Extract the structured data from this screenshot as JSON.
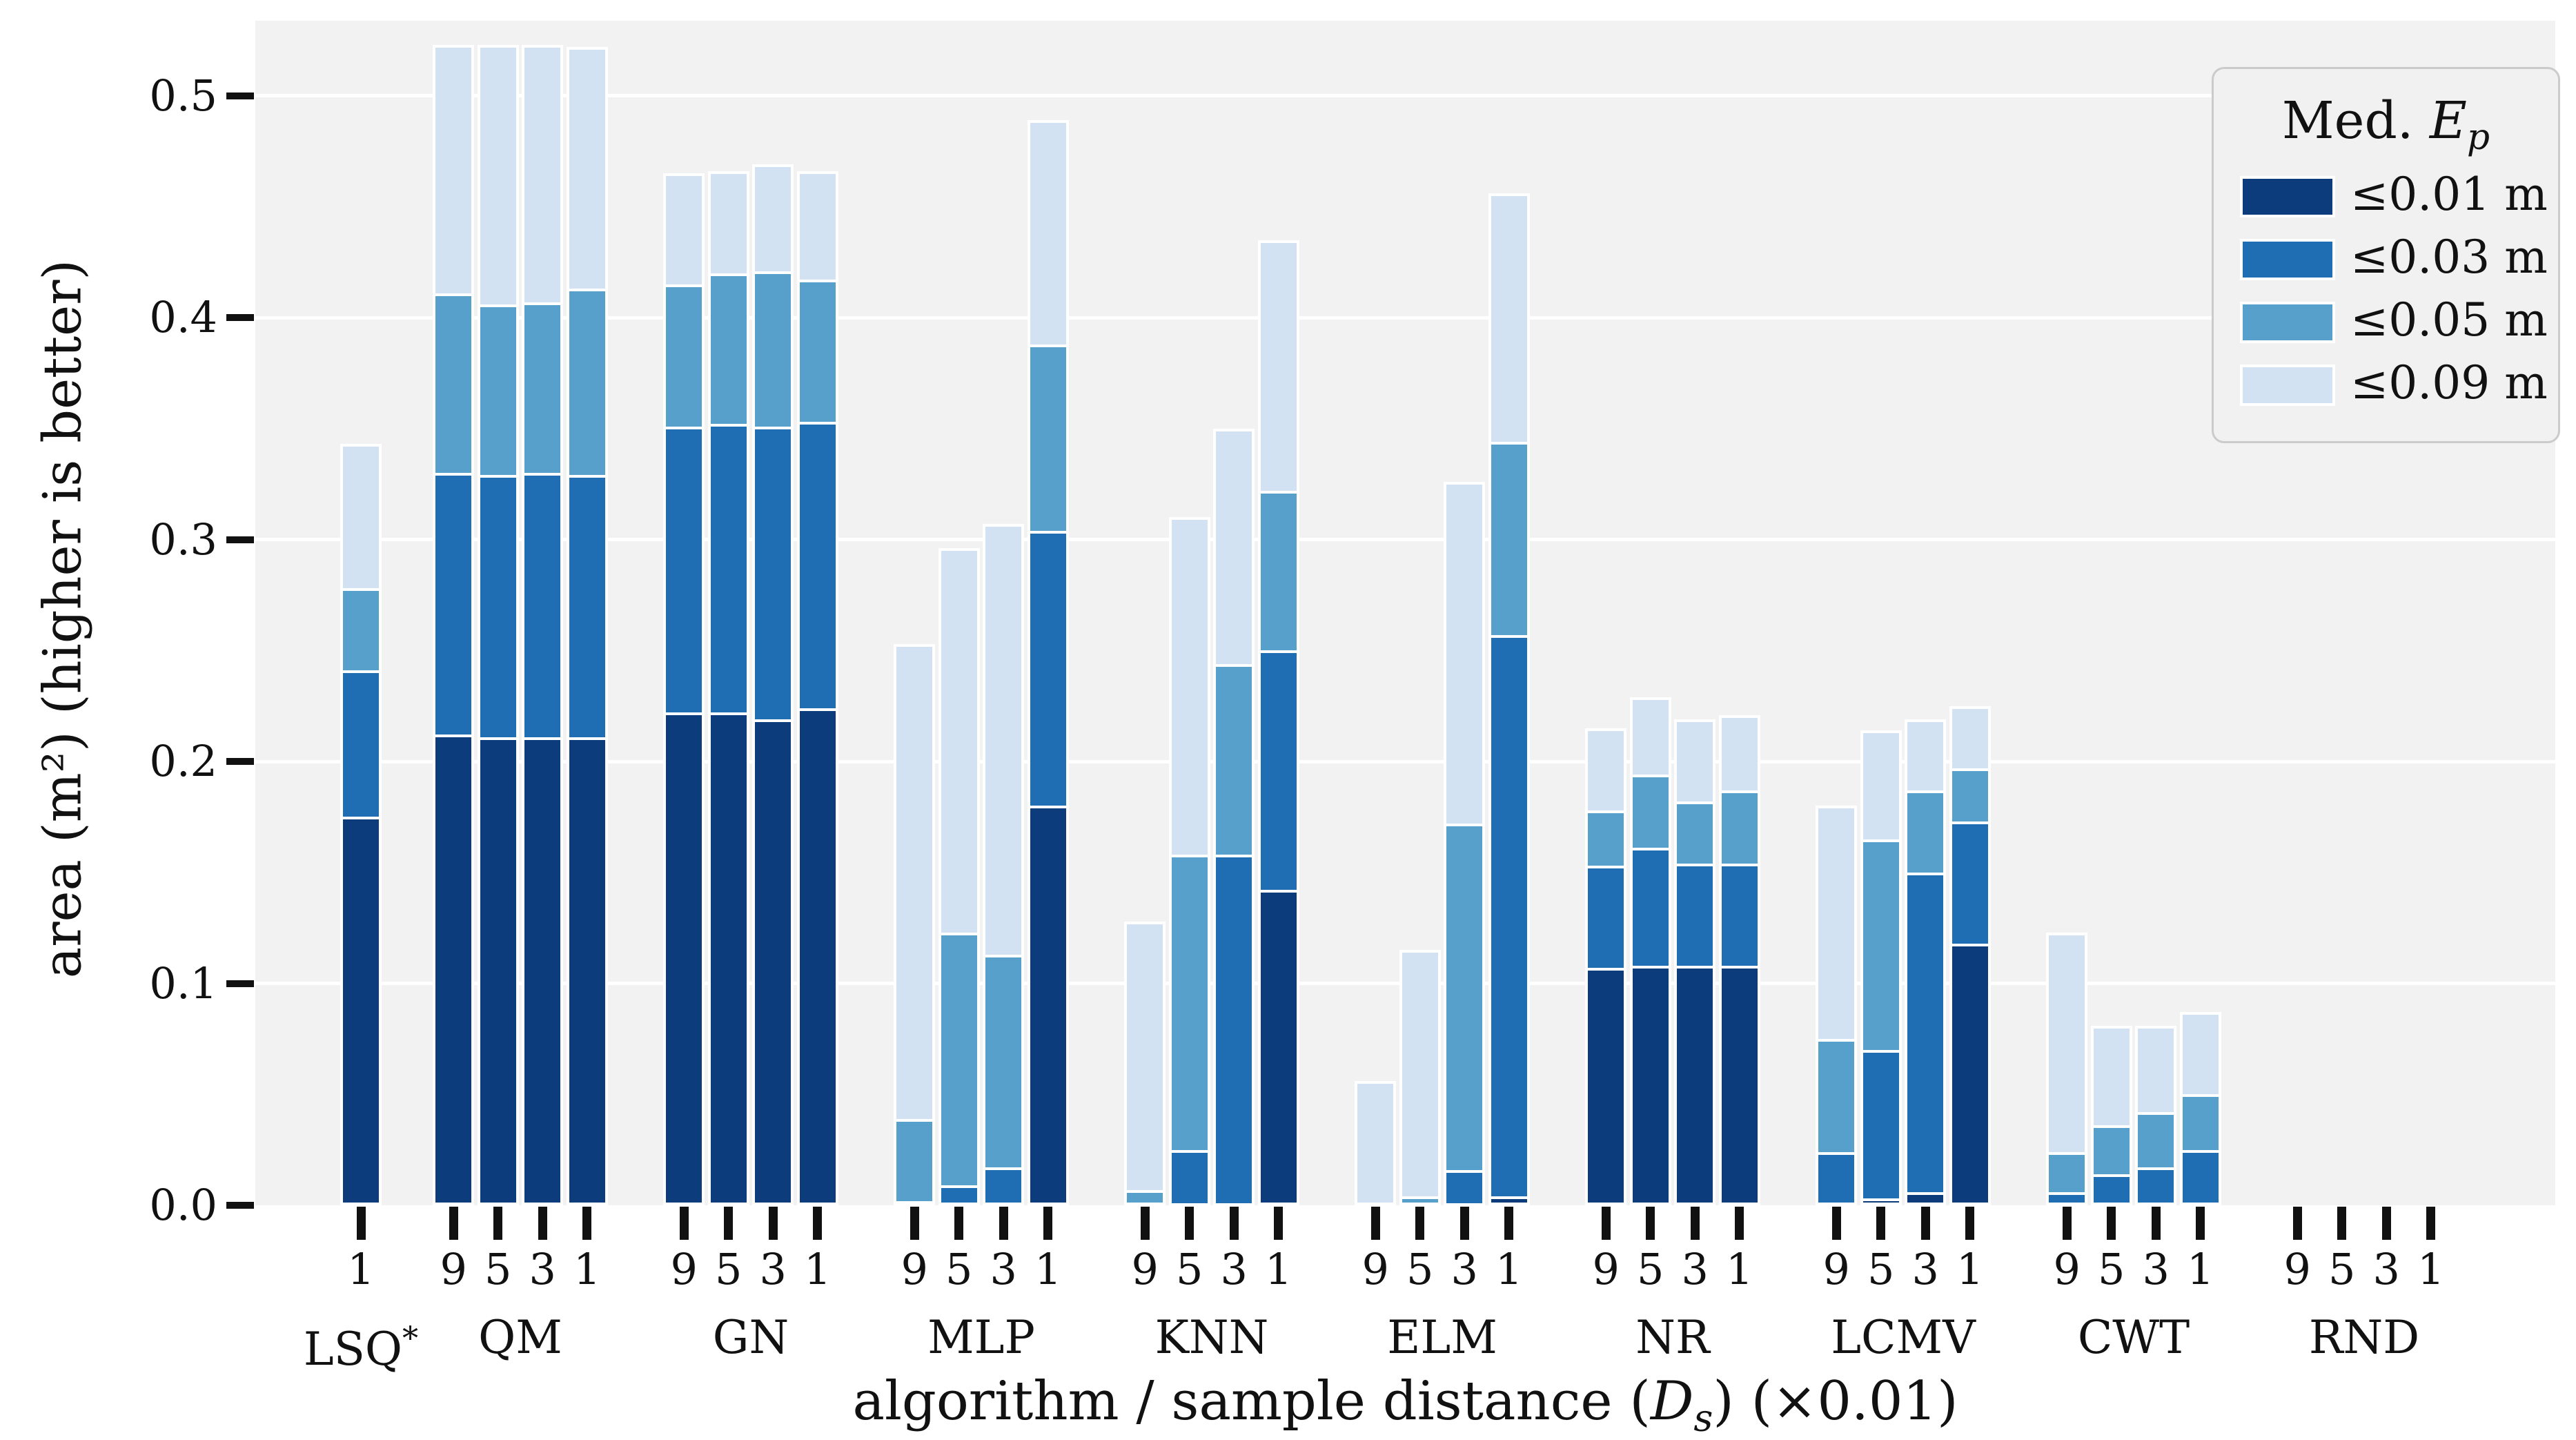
{
  "figure": {
    "background": "#ffffff",
    "plot_background": "#f2f2f2",
    "grid_color": "#ffffff"
  },
  "y_axis": {
    "label": "area (m²) (higher is better)",
    "ticks": [
      "0.0",
      "0.1",
      "0.2",
      "0.3",
      "0.4",
      "0.5"
    ]
  },
  "x_axis": {
    "label_pre": "algorithm / sample distance (",
    "label_var": "D",
    "label_var_sub": "s",
    "label_post": ") (×0.01)"
  },
  "legend": {
    "title_pre": "Med. ",
    "title_var": "E",
    "title_var_sub": "p",
    "items": [
      {
        "label": "≤0.01 m",
        "color": "#0d3c7c"
      },
      {
        "label": "≤0.03 m",
        "color": "#1f6db3"
      },
      {
        "label": "≤0.05 m",
        "color": "#57a0cb"
      },
      {
        "label": "≤0.09 m",
        "color": "#d3e2f2"
      }
    ]
  },
  "chart_data": {
    "type": "bar",
    "stacked": true,
    "title": "",
    "xlabel": "algorithm / sample distance (Ds) (×0.01)",
    "ylabel": "area (m²) (higher is better)",
    "ylim": [
      0,
      0.533
    ],
    "grid": true,
    "legend_position": "upper right",
    "series_labels": [
      "≤0.01 m",
      "≤0.03 m",
      "≤0.05 m",
      "≤0.09 m"
    ],
    "note": "values are cumulative stack tops in m² for Med. Ep thresholds ≤0.01, ≤0.03, ≤0.05, ≤0.09",
    "groups": [
      {
        "label": "LSQ",
        "label_sup": "*",
        "bars": [
          {
            "x": "1",
            "cumulative": [
              0.175,
              0.241,
              0.278,
              0.343
            ]
          }
        ]
      },
      {
        "label": "QM",
        "label_sup": "",
        "bars": [
          {
            "x": "9",
            "cumulative": [
              0.212,
              0.33,
              0.411,
              0.523
            ]
          },
          {
            "x": "5",
            "cumulative": [
              0.211,
              0.329,
              0.406,
              0.523
            ]
          },
          {
            "x": "3",
            "cumulative": [
              0.211,
              0.33,
              0.407,
              0.523
            ]
          },
          {
            "x": "1",
            "cumulative": [
              0.211,
              0.329,
              0.413,
              0.522
            ]
          }
        ]
      },
      {
        "label": "GN",
        "label_sup": "",
        "bars": [
          {
            "x": "9",
            "cumulative": [
              0.222,
              0.351,
              0.415,
              0.465
            ]
          },
          {
            "x": "5",
            "cumulative": [
              0.222,
              0.352,
              0.42,
              0.466
            ]
          },
          {
            "x": "3",
            "cumulative": [
              0.219,
              0.351,
              0.421,
              0.469
            ]
          },
          {
            "x": "1",
            "cumulative": [
              0.224,
              0.353,
              0.417,
              0.466
            ]
          }
        ]
      },
      {
        "label": "MLP",
        "label_sup": "",
        "bars": [
          {
            "x": "9",
            "cumulative": [
              0.0,
              0.002,
              0.039,
              0.253
            ]
          },
          {
            "x": "5",
            "cumulative": [
              0.0,
              0.009,
              0.123,
              0.296
            ]
          },
          {
            "x": "3",
            "cumulative": [
              0.0,
              0.017,
              0.113,
              0.307
            ]
          },
          {
            "x": "1",
            "cumulative": [
              0.18,
              0.304,
              0.388,
              0.489
            ]
          }
        ]
      },
      {
        "label": "KNN",
        "label_sup": "",
        "bars": [
          {
            "x": "9",
            "cumulative": [
              0.0,
              0.0,
              0.007,
              0.128
            ]
          },
          {
            "x": "5",
            "cumulative": [
              0.001,
              0.025,
              0.158,
              0.31
            ]
          },
          {
            "x": "3",
            "cumulative": [
              0.001,
              0.158,
              0.244,
              0.35
            ]
          },
          {
            "x": "1",
            "cumulative": [
              0.142,
              0.25,
              0.322,
              0.435
            ]
          }
        ]
      },
      {
        "label": "ELM",
        "label_sup": "",
        "bars": [
          {
            "x": "9",
            "cumulative": [
              0.0,
              0.0,
              0.0,
              0.056
            ]
          },
          {
            "x": "5",
            "cumulative": [
              0.0,
              0.0,
              0.004,
              0.115
            ]
          },
          {
            "x": "3",
            "cumulative": [
              0.001,
              0.016,
              0.172,
              0.326
            ]
          },
          {
            "x": "1",
            "cumulative": [
              0.004,
              0.257,
              0.344,
              0.456
            ]
          }
        ]
      },
      {
        "label": "NR",
        "label_sup": "",
        "bars": [
          {
            "x": "9",
            "cumulative": [
              0.107,
              0.153,
              0.178,
              0.215
            ]
          },
          {
            "x": "5",
            "cumulative": [
              0.108,
              0.161,
              0.194,
              0.229
            ]
          },
          {
            "x": "3",
            "cumulative": [
              0.108,
              0.154,
              0.182,
              0.219
            ]
          },
          {
            "x": "1",
            "cumulative": [
              0.108,
              0.154,
              0.187,
              0.221
            ]
          }
        ]
      },
      {
        "label": "LCMV",
        "label_sup": "",
        "bars": [
          {
            "x": "9",
            "cumulative": [
              0.0,
              0.024,
              0.075,
              0.18
            ]
          },
          {
            "x": "5",
            "cumulative": [
              0.003,
              0.07,
              0.165,
              0.214
            ]
          },
          {
            "x": "3",
            "cumulative": [
              0.006,
              0.15,
              0.187,
              0.219
            ]
          },
          {
            "x": "1",
            "cumulative": [
              0.118,
              0.173,
              0.197,
              0.225
            ]
          }
        ]
      },
      {
        "label": "CWT",
        "label_sup": "",
        "bars": [
          {
            "x": "9",
            "cumulative": [
              0.0,
              0.006,
              0.024,
              0.123
            ]
          },
          {
            "x": "5",
            "cumulative": [
              0.0,
              0.014,
              0.036,
              0.081
            ]
          },
          {
            "x": "3",
            "cumulative": [
              0.0,
              0.017,
              0.042,
              0.081
            ]
          },
          {
            "x": "1",
            "cumulative": [
              0.0,
              0.025,
              0.05,
              0.087
            ]
          }
        ]
      },
      {
        "label": "RND",
        "label_sup": "",
        "bars": [
          {
            "x": "9",
            "cumulative": [
              0.0,
              0.0,
              0.0,
              0.0
            ]
          },
          {
            "x": "5",
            "cumulative": [
              0.0,
              0.0,
              0.0,
              0.0
            ]
          },
          {
            "x": "3",
            "cumulative": [
              0.0,
              0.0,
              0.0,
              0.0
            ]
          },
          {
            "x": "1",
            "cumulative": [
              0.0,
              0.0,
              0.0,
              0.0
            ]
          }
        ]
      }
    ]
  }
}
